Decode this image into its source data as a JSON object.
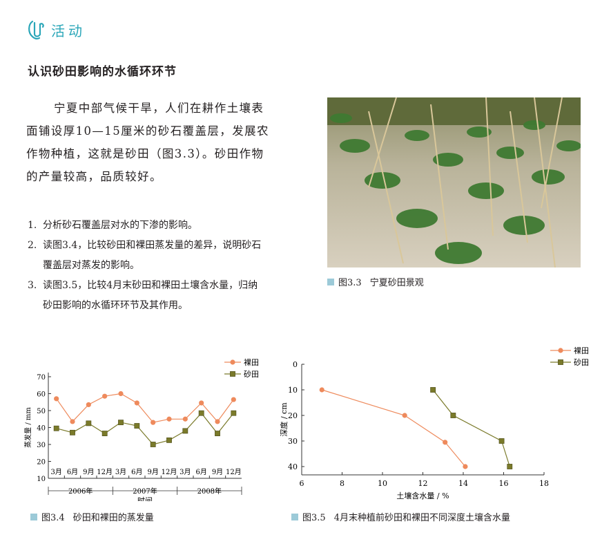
{
  "header": {
    "activity_label": "活动"
  },
  "section_title": "认识砂田影响的水循环环节",
  "intro_lines": [
    "宁夏中部气候干旱，人们在耕作土壤表",
    "面铺设厚10—15厘米的砂石覆盖层，发展农",
    "作物种植，这就是砂田（图3.3）。砂田作物",
    "的产量较高，品质较好。"
  ],
  "questions": [
    {
      "num": "1.",
      "lines": [
        "分析砂石覆盖层对水的下渗的影响。"
      ]
    },
    {
      "num": "2.",
      "lines": [
        "读图3.4，比较砂田和裸田蒸发量的差异，说明砂石",
        "覆盖层对蒸发的影响。"
      ]
    },
    {
      "num": "3.",
      "lines": [
        "读图3.5，比较4月末砂田和裸田土壤含水量，归纳",
        "砂田影响的水循环环节及其作用。"
      ]
    }
  ],
  "figures": {
    "fig33": {
      "number": "图3.3",
      "title": "宁夏砂田景观"
    },
    "fig34": {
      "number": "图3.4",
      "title": "砂田和裸田的蒸发量"
    },
    "fig35": {
      "number": "图3.5",
      "title": "4月末种植前砂田和裸田不同深度土壤含水量"
    }
  },
  "colors": {
    "bare": "#ee8a5c",
    "sand": "#7a7a2a",
    "accent": "#2aa6b8",
    "caption_square": "#9ccad8"
  },
  "chart_data": [
    {
      "type": "line",
      "ylabel": "蒸发量 / mm",
      "xlabel": "时间",
      "ylim": [
        10,
        70
      ],
      "yticks": [
        10,
        20,
        30,
        40,
        50,
        60,
        70
      ],
      "categories": [
        "3月",
        "6月",
        "9月",
        "12月",
        "3月",
        "6月",
        "9月",
        "12月",
        "3月",
        "6月",
        "9月",
        "12月"
      ],
      "years": [
        "2006年",
        "2007年",
        "2008年"
      ],
      "legend_position": "top-right",
      "series": [
        {
          "name": "裸田",
          "values": [
            57,
            43.5,
            53.5,
            58.5,
            60,
            54.5,
            43,
            45,
            45,
            54.5,
            43.5,
            56.5
          ]
        },
        {
          "name": "砂田",
          "values": [
            39.5,
            37,
            42.5,
            36.5,
            43,
            41,
            30,
            32.5,
            38,
            48.5,
            36.5,
            48.5
          ]
        }
      ]
    },
    {
      "type": "line",
      "ylabel": "深度 / cm",
      "xlabel": "土壤含水量 / %",
      "xlim": [
        6,
        18
      ],
      "ylim": [
        0,
        40
      ],
      "xticks": [
        6,
        8,
        10,
        12,
        14,
        16,
        18
      ],
      "yticks": [
        0,
        10,
        20,
        30,
        40
      ],
      "y_inverted": true,
      "legend_position": "top-right",
      "series": [
        {
          "name": "裸田",
          "x": [
            7,
            11.1,
            13.1,
            14.1
          ],
          "y": [
            10,
            20,
            30.5,
            40
          ]
        },
        {
          "name": "砂田",
          "x": [
            12.5,
            13.5,
            15.9,
            16.3
          ],
          "y": [
            10,
            20,
            30,
            40
          ]
        }
      ]
    }
  ]
}
